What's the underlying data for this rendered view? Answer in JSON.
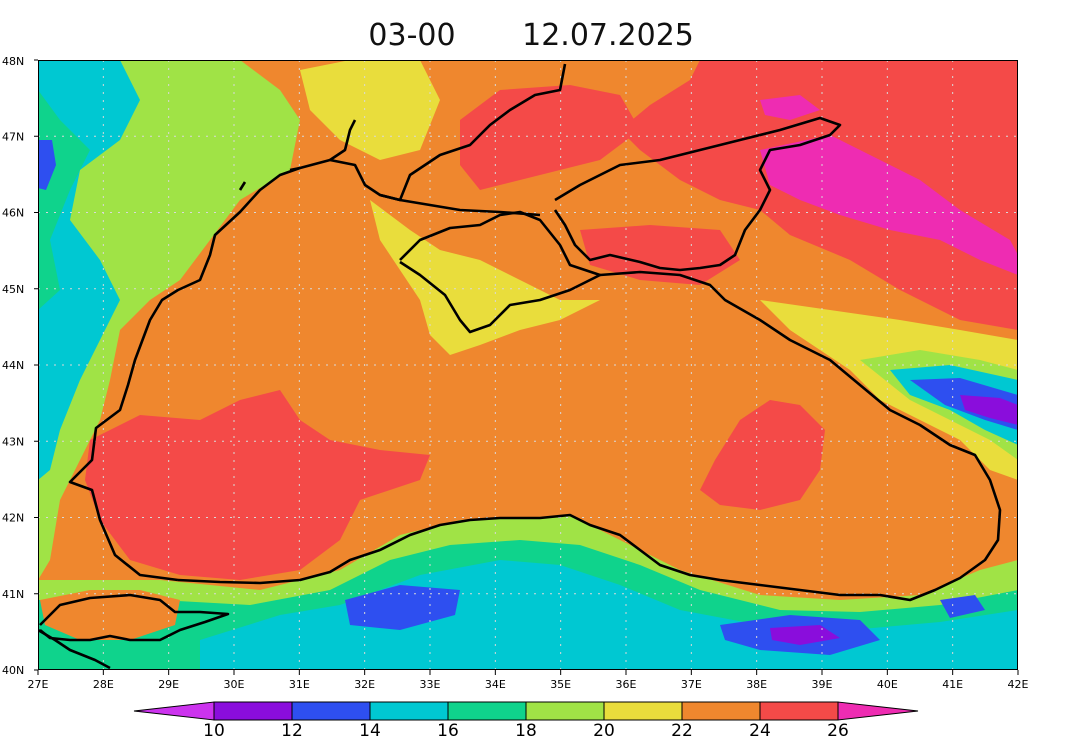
{
  "title": {
    "time": "03-00",
    "date": "12.07.2025"
  },
  "map": {
    "lon_range": [
      27,
      42
    ],
    "lat_range": [
      40,
      48
    ],
    "lon_labels": [
      "27E",
      "28E",
      "29E",
      "30E",
      "31E",
      "32E",
      "33E",
      "34E",
      "35E",
      "36E",
      "37E",
      "38E",
      "39E",
      "40E",
      "41E",
      "42E"
    ],
    "lat_labels": [
      "40N",
      "41N",
      "42N",
      "43N",
      "44N",
      "45N",
      "46N",
      "47N",
      "48N"
    ],
    "grid": true
  },
  "legend": {
    "labels": [
      "10",
      "12",
      "14",
      "16",
      "18",
      "20",
      "22",
      "24",
      "26"
    ],
    "colors": [
      "#cc33ee",
      "#8a0ddc",
      "#2e4ff0",
      "#00c8d2",
      "#0fd38c",
      "#a0e346",
      "#e9dd3c",
      "#ef872e",
      "#f44a48",
      "#ee2cb2"
    ]
  }
}
